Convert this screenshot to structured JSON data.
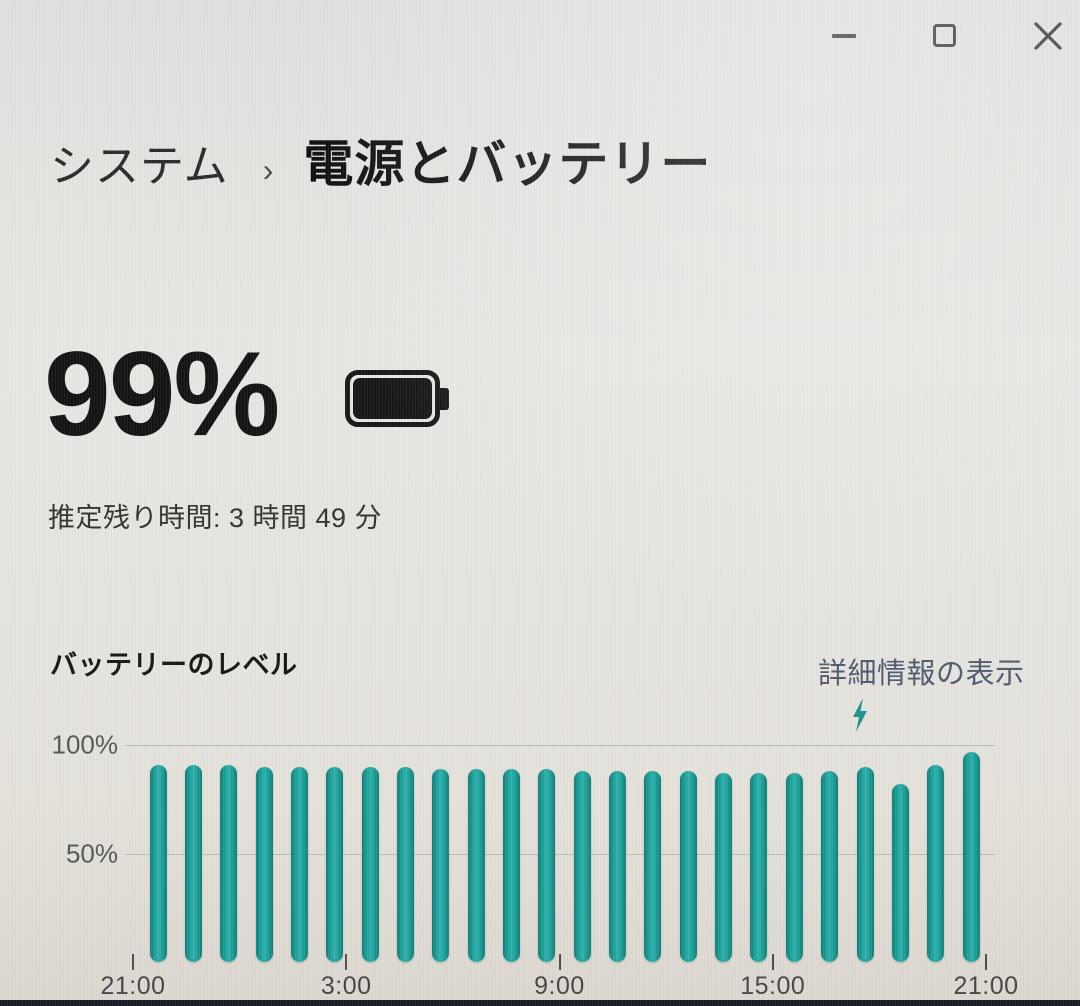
{
  "window_controls": {
    "minimize": "minimize",
    "maximize": "maximize",
    "close": "close"
  },
  "breadcrumb": {
    "parent": "システム",
    "separator": "›",
    "current": "電源とバッテリー"
  },
  "battery": {
    "percent": "99%",
    "remaining": "推定残り時間: 3 時間 49 分"
  },
  "battery_level_section": {
    "heading": "バッテリーのレベル",
    "details_link": "詳細情報の表示"
  },
  "chart_data": {
    "type": "bar",
    "title": "バッテリーのレベル",
    "x": [
      "21:00",
      "22:00",
      "23:00",
      "0:00",
      "1:00",
      "2:00",
      "3:00",
      "4:00",
      "5:00",
      "6:00",
      "7:00",
      "8:00",
      "9:00",
      "10:00",
      "11:00",
      "12:00",
      "13:00",
      "14:00",
      "15:00",
      "16:00",
      "17:00",
      "18:00",
      "19:00",
      "20:00"
    ],
    "values": [
      91,
      91,
      91,
      90,
      90,
      90,
      90,
      90,
      89,
      89,
      89,
      89,
      88,
      88,
      88,
      88,
      87,
      87,
      87,
      88,
      90,
      82,
      91,
      97
    ],
    "ylim": [
      0,
      100
    ],
    "yticks": [
      100,
      50
    ],
    "ytick_labels": [
      "100%",
      "50%"
    ],
    "xtick_labels": [
      "21:00",
      "3:00",
      "9:00",
      "15:00",
      "21:00"
    ],
    "grid": "horizontal",
    "legend": "none",
    "bar_color": "#1fa39c",
    "annotation": {
      "icon": "lightning-bolt",
      "x_index": 20
    }
  },
  "colors": {
    "bar": "#1fa39c",
    "bar_edge": "#0f7d78",
    "link": "#4d5b6e",
    "grid": "#b3b3af",
    "axis_text": "#4f4f4d",
    "text": "#1b1b1a",
    "bolt": "#1d938c"
  }
}
